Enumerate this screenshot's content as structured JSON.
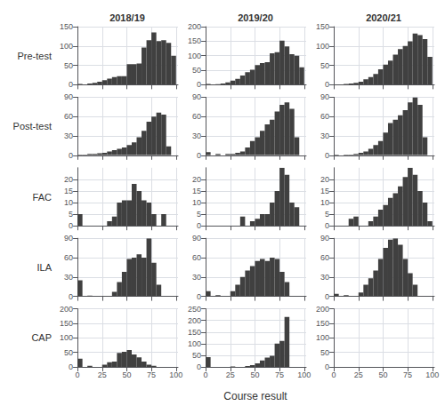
{
  "chart_data": [
    {
      "type": "histogram",
      "title": "2018/19",
      "ylabel": "Pre-test",
      "bins": [
        0,
        5,
        10,
        15,
        20,
        25,
        30,
        35,
        40,
        45,
        50,
        55,
        60,
        65,
        70,
        75,
        80,
        85,
        90,
        95,
        100
      ],
      "values": [
        2,
        1,
        3,
        5,
        8,
        12,
        16,
        20,
        22,
        22,
        53,
        53,
        55,
        96,
        115,
        135,
        113,
        115,
        108,
        75
      ],
      "color": "#404040",
      "xlim": [
        -1,
        102
      ],
      "xticks": [
        0,
        25,
        50,
        75,
        100
      ],
      "ylim": [
        0,
        150
      ],
      "yticks": [
        0,
        50,
        100,
        150
      ],
      "grid": true,
      "tick_labels": "y"
    },
    {
      "type": "histogram",
      "title": "2019/20",
      "bins": [
        0,
        5,
        10,
        15,
        20,
        25,
        30,
        35,
        40,
        45,
        50,
        55,
        60,
        65,
        70,
        75,
        80,
        85,
        90,
        95,
        100
      ],
      "values": [
        3,
        1,
        2,
        4,
        8,
        14,
        20,
        32,
        43,
        52,
        68,
        75,
        78,
        108,
        112,
        152,
        132,
        105,
        100,
        60
      ],
      "color": "#404040",
      "xlim": [
        -1,
        102
      ],
      "xticks": [
        0,
        25,
        50,
        75,
        100
      ],
      "ylim": [
        0,
        200
      ],
      "yticks": [
        0,
        50,
        100,
        150,
        200
      ],
      "grid": true,
      "tick_labels": "y"
    },
    {
      "type": "histogram",
      "title": "2020/21",
      "bins": [
        0,
        5,
        10,
        15,
        20,
        25,
        30,
        35,
        40,
        45,
        50,
        55,
        60,
        65,
        70,
        75,
        80,
        85,
        90,
        95,
        100
      ],
      "values": [
        1,
        1,
        2,
        3,
        5,
        8,
        14,
        20,
        28,
        40,
        52,
        62,
        78,
        92,
        100,
        112,
        132,
        128,
        118,
        72
      ],
      "color": "#404040",
      "xlim": [
        -1,
        102
      ],
      "xticks": [
        0,
        25,
        50,
        75,
        100
      ],
      "ylim": [
        0,
        150
      ],
      "yticks": [
        0,
        50,
        100,
        150
      ],
      "grid": true,
      "tick_labels": "y"
    },
    {
      "type": "histogram",
      "ylabel": "Post-test",
      "bins": [
        0,
        5,
        10,
        15,
        20,
        25,
        30,
        35,
        40,
        45,
        50,
        55,
        60,
        65,
        70,
        75,
        80,
        85,
        90,
        95,
        100
      ],
      "values": [
        1,
        1,
        2,
        2,
        3,
        4,
        6,
        8,
        10,
        12,
        16,
        20,
        28,
        38,
        52,
        60,
        66,
        63,
        14,
        0
      ],
      "color": "#404040",
      "xlim": [
        -1,
        102
      ],
      "xticks": [
        0,
        25,
        50,
        75,
        100
      ],
      "ylim": [
        0,
        90
      ],
      "yticks": [
        0,
        30,
        60,
        90
      ],
      "grid": true,
      "tick_labels": "y"
    },
    {
      "type": "histogram",
      "bins": [
        0,
        5,
        10,
        15,
        20,
        25,
        30,
        35,
        40,
        45,
        50,
        55,
        60,
        65,
        70,
        75,
        80,
        85,
        90,
        95,
        100
      ],
      "values": [
        5,
        0,
        2,
        0,
        2,
        2,
        4,
        6,
        12,
        22,
        28,
        38,
        48,
        55,
        68,
        78,
        82,
        72,
        28,
        0
      ],
      "color": "#404040",
      "xlim": [
        -1,
        102
      ],
      "xticks": [
        0,
        25,
        50,
        75,
        100
      ],
      "ylim": [
        0,
        90
      ],
      "yticks": [
        0,
        30,
        60,
        90
      ],
      "grid": true,
      "tick_labels": "y"
    },
    {
      "type": "histogram",
      "bins": [
        0,
        5,
        10,
        15,
        20,
        25,
        30,
        35,
        40,
        45,
        50,
        55,
        60,
        65,
        70,
        75,
        80,
        85,
        90,
        95,
        100
      ],
      "values": [
        1,
        0,
        1,
        1,
        2,
        4,
        6,
        10,
        16,
        22,
        35,
        50,
        55,
        62,
        70,
        82,
        90,
        78,
        28,
        0
      ],
      "color": "#404040",
      "xlim": [
        -1,
        102
      ],
      "xticks": [
        0,
        25,
        50,
        75,
        100
      ],
      "ylim": [
        0,
        90
      ],
      "yticks": [
        0,
        30,
        60,
        90
      ],
      "grid": true,
      "tick_labels": "y"
    },
    {
      "type": "histogram",
      "ylabel": "FAC",
      "bins": [
        0,
        5,
        10,
        15,
        20,
        25,
        30,
        35,
        40,
        45,
        50,
        55,
        60,
        65,
        70,
        75,
        80,
        85,
        90,
        95,
        100
      ],
      "values": [
        5,
        0,
        0,
        0,
        0,
        0,
        2,
        4,
        10,
        11,
        11,
        18,
        15,
        11,
        10,
        5,
        0,
        5,
        0,
        0
      ],
      "color": "#404040",
      "xlim": [
        -1,
        102
      ],
      "xticks": [
        0,
        25,
        50,
        75,
        100
      ],
      "ylim": [
        0,
        25
      ],
      "yticks": [
        0,
        5,
        10,
        15,
        20
      ],
      "grid": true,
      "tick_labels": "y"
    },
    {
      "type": "histogram",
      "bins": [
        0,
        5,
        10,
        15,
        20,
        25,
        30,
        35,
        40,
        45,
        50,
        55,
        60,
        65,
        70,
        75,
        80,
        85,
        90,
        95,
        100
      ],
      "values": [
        0,
        0,
        0,
        0,
        0,
        0,
        0,
        4,
        0,
        2,
        3,
        5,
        5,
        10,
        15,
        25,
        22,
        10,
        8,
        0
      ],
      "color": "#404040",
      "xlim": [
        -1,
        102
      ],
      "xticks": [
        0,
        25,
        50,
        75,
        100
      ],
      "ylim": [
        0,
        25
      ],
      "yticks": [
        0,
        5,
        10,
        15,
        20
      ],
      "grid": true,
      "tick_labels": "y"
    },
    {
      "type": "histogram",
      "bins": [
        0,
        5,
        10,
        15,
        20,
        25,
        30,
        35,
        40,
        45,
        50,
        55,
        60,
        65,
        70,
        75,
        80,
        85,
        90,
        95,
        100
      ],
      "values": [
        0,
        0,
        0,
        3,
        4,
        0,
        0,
        2,
        4,
        7,
        9,
        12,
        14,
        17,
        21,
        25,
        22,
        15,
        10,
        2
      ],
      "color": "#404040",
      "xlim": [
        -1,
        102
      ],
      "xticks": [
        0,
        25,
        50,
        75,
        100
      ],
      "ylim": [
        0,
        25
      ],
      "yticks": [
        0,
        5,
        10,
        15,
        20
      ],
      "grid": true,
      "tick_labels": "y"
    },
    {
      "type": "histogram",
      "ylabel": "ILA",
      "bins": [
        0,
        5,
        10,
        15,
        20,
        25,
        30,
        35,
        40,
        45,
        50,
        55,
        60,
        65,
        70,
        75,
        80,
        85,
        90,
        95,
        100
      ],
      "values": [
        25,
        0,
        1,
        0,
        0,
        0,
        0,
        7,
        22,
        38,
        58,
        60,
        65,
        60,
        90,
        52,
        18,
        0,
        0,
        0
      ],
      "color": "#404040",
      "xlim": [
        -1,
        102
      ],
      "xticks": [
        0,
        25,
        50,
        75,
        100
      ],
      "ylim": [
        0,
        90
      ],
      "yticks": [
        0,
        30,
        60,
        90
      ],
      "grid": true,
      "tick_labels": "y"
    },
    {
      "type": "histogram",
      "bins": [
        0,
        5,
        10,
        15,
        20,
        25,
        30,
        35,
        40,
        45,
        50,
        55,
        60,
        65,
        70,
        75,
        80,
        85,
        90,
        95,
        100
      ],
      "values": [
        8,
        0,
        2,
        0,
        0,
        8,
        18,
        30,
        40,
        47,
        55,
        58,
        55,
        60,
        58,
        38,
        22,
        0,
        0,
        0
      ],
      "color": "#404040",
      "xlim": [
        -1,
        102
      ],
      "xticks": [
        0,
        25,
        50,
        75,
        100
      ],
      "ylim": [
        0,
        90
      ],
      "yticks": [
        0,
        30,
        60,
        90
      ],
      "grid": true,
      "tick_labels": "y"
    },
    {
      "type": "histogram",
      "bins": [
        0,
        5,
        10,
        15,
        20,
        25,
        30,
        35,
        40,
        45,
        50,
        55,
        60,
        65,
        70,
        75,
        80,
        85,
        90,
        95,
        100
      ],
      "values": [
        4,
        0,
        2,
        0,
        0,
        6,
        18,
        28,
        40,
        58,
        75,
        88,
        90,
        80,
        58,
        36,
        18,
        0,
        0,
        0
      ],
      "color": "#404040",
      "xlim": [
        -1,
        102
      ],
      "xticks": [
        0,
        25,
        50,
        75,
        100
      ],
      "ylim": [
        0,
        90
      ],
      "yticks": [
        0,
        30,
        60,
        90
      ],
      "grid": true,
      "tick_labels": "y"
    },
    {
      "type": "histogram",
      "ylabel": "CAP",
      "bins": [
        0,
        5,
        10,
        15,
        20,
        25,
        30,
        35,
        40,
        45,
        50,
        55,
        60,
        65,
        70,
        75,
        80,
        85,
        90,
        95,
        100
      ],
      "values": [
        28,
        0,
        4,
        0,
        0,
        8,
        16,
        18,
        48,
        52,
        58,
        43,
        33,
        18,
        8,
        4,
        0,
        0,
        0,
        0
      ],
      "color": "#404040",
      "xlim": [
        -1,
        102
      ],
      "xticks": [
        0,
        25,
        50,
        75,
        100
      ],
      "ylim": [
        0,
        200
      ],
      "yticks": [
        0,
        50,
        100,
        150,
        200
      ],
      "grid": true
    },
    {
      "type": "histogram",
      "xlabel": "Course result",
      "bins": [
        0,
        5,
        10,
        15,
        20,
        25,
        30,
        35,
        40,
        45,
        50,
        55,
        60,
        65,
        70,
        75,
        80,
        85,
        90,
        95,
        100
      ],
      "values": [
        42,
        0,
        0,
        0,
        0,
        2,
        0,
        0,
        4,
        8,
        15,
        28,
        40,
        48,
        100,
        112,
        215,
        0,
        0,
        0
      ],
      "color": "#404040",
      "xlim": [
        -1,
        102
      ],
      "xticks": [
        0,
        25,
        50,
        75,
        100
      ],
      "ylim": [
        0,
        250
      ],
      "yticks": [
        0,
        50,
        100,
        150,
        200,
        250
      ],
      "grid": true
    },
    {
      "type": "histogram",
      "bins": [
        0,
        5,
        10,
        15,
        20,
        25,
        30,
        35,
        40,
        45,
        50,
        55,
        60,
        65,
        70,
        75,
        80,
        85,
        90,
        95,
        100
      ],
      "values": [
        0,
        0,
        0,
        0,
        0,
        0,
        0,
        0,
        0,
        0,
        0,
        0,
        0,
        0,
        0,
        0,
        0,
        0,
        0,
        0
      ],
      "color": "#404040",
      "xlim": [
        -1,
        102
      ],
      "xticks": [
        0,
        25,
        50,
        75,
        100
      ],
      "ylim": [
        0,
        200
      ],
      "yticks": [
        0,
        50,
        100,
        150,
        200
      ],
      "grid": true
    }
  ]
}
